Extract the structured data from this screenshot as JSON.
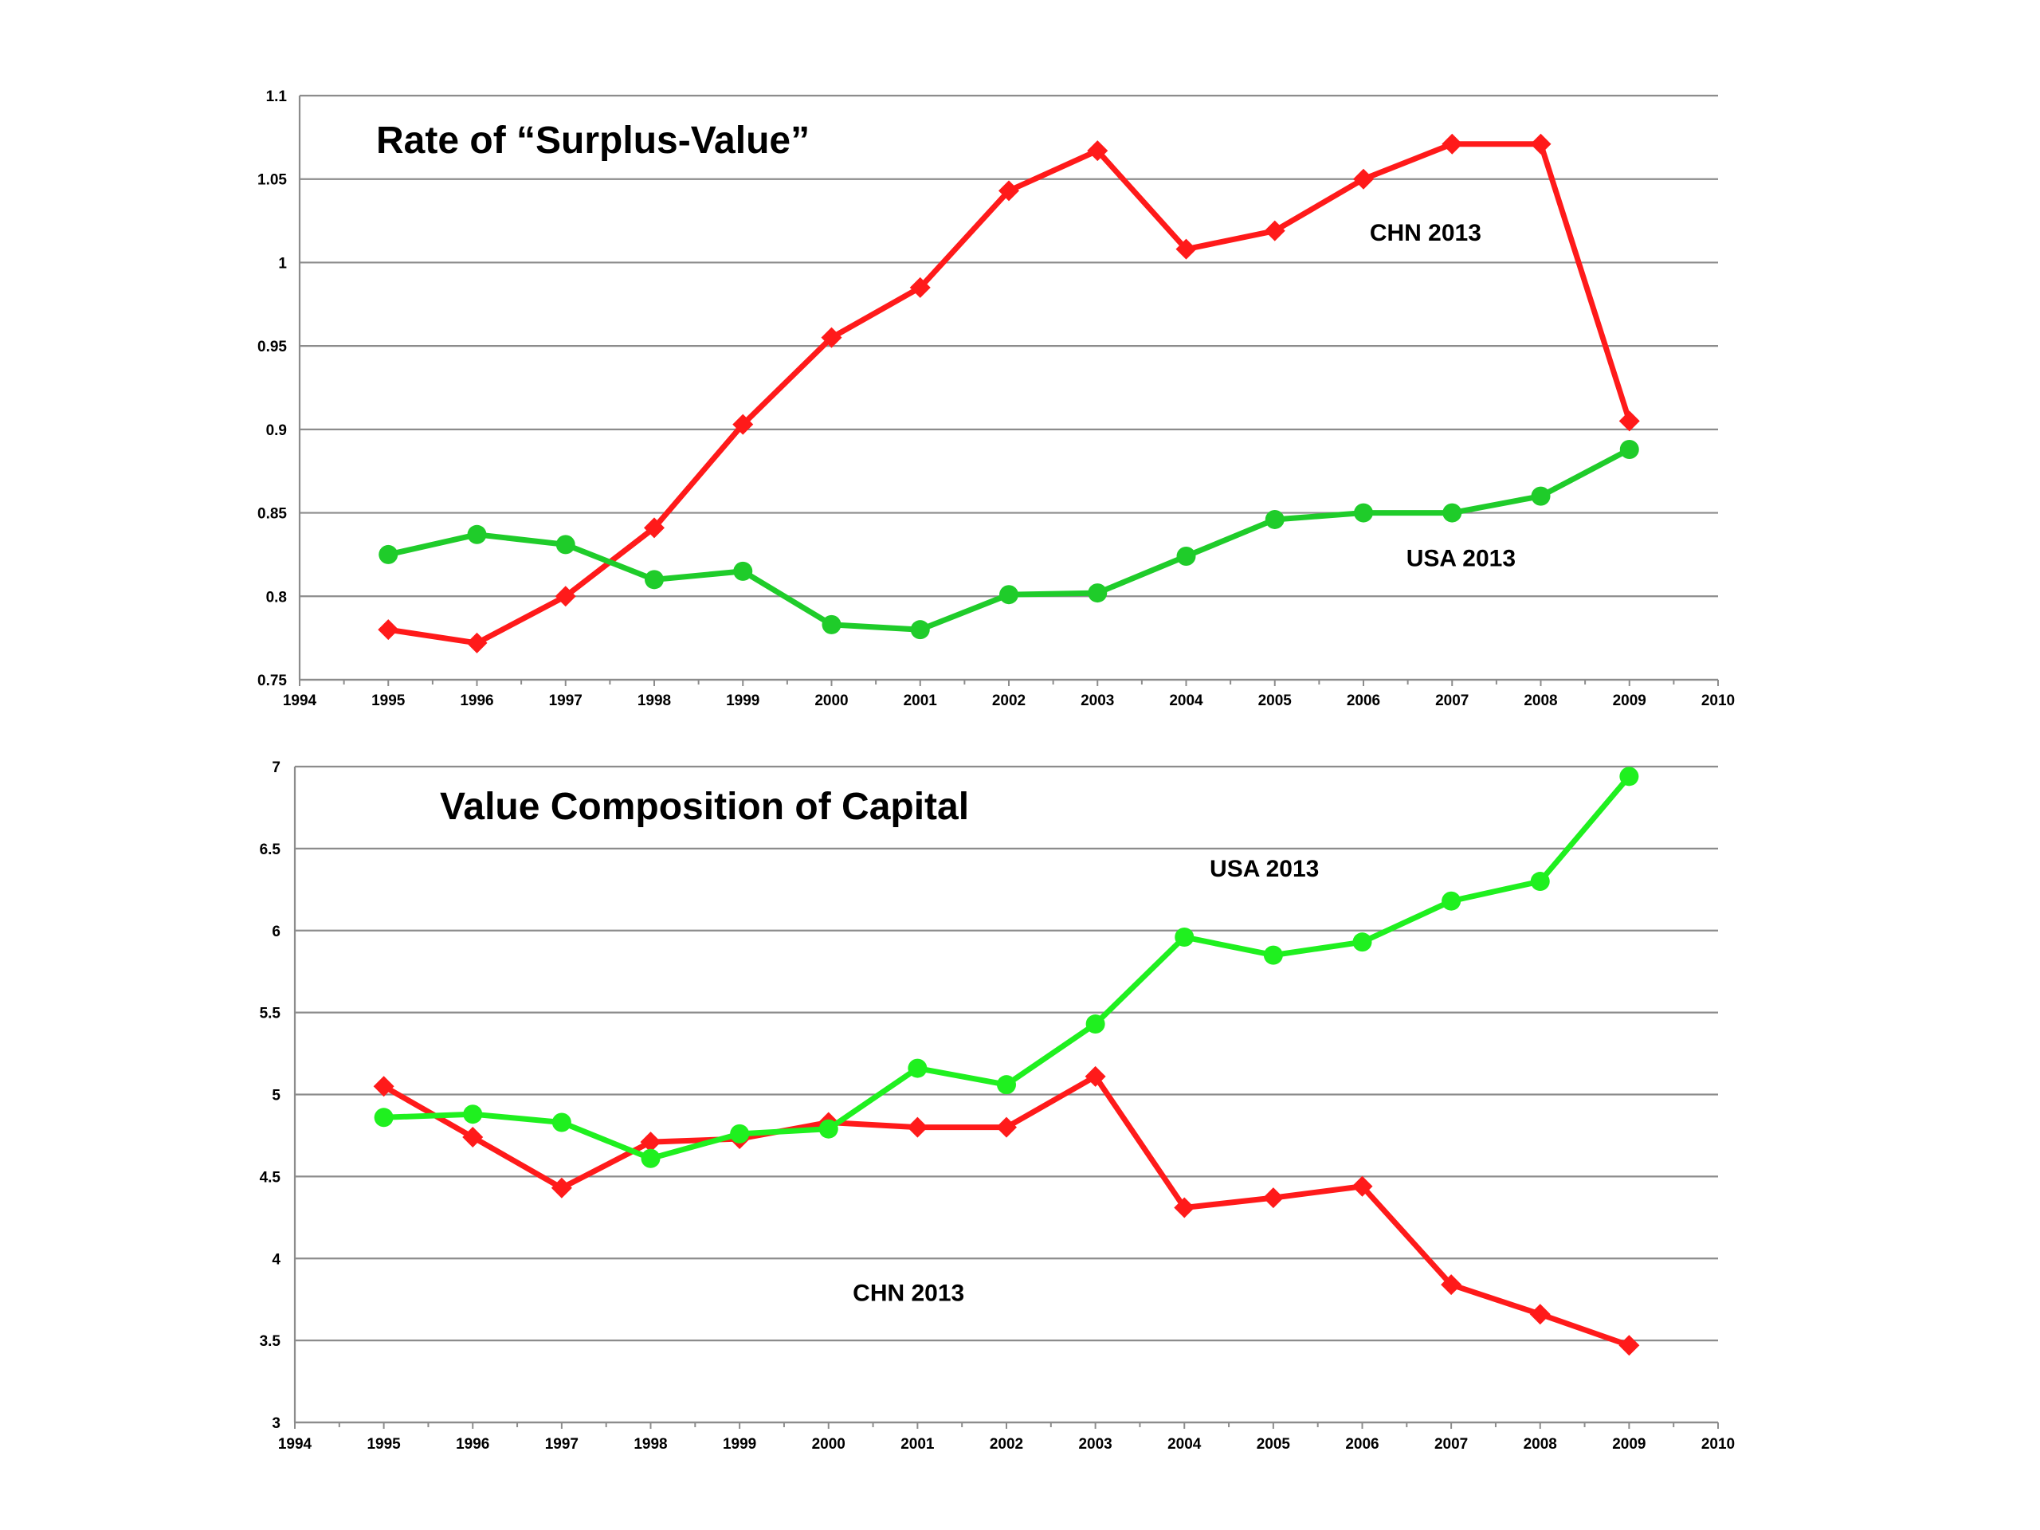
{
  "chart_data": [
    {
      "type": "line",
      "title": "Rate of “Surplus-Value”",
      "xlabel": "",
      "ylabel": "",
      "xlim": [
        1994,
        2010
      ],
      "ylim": [
        0.75,
        1.1
      ],
      "xticks": [
        "1994",
        "1995",
        "1996",
        "1997",
        "1998",
        "1999",
        "2000",
        "2001",
        "2002",
        "2003",
        "2004",
        "2005",
        "2006",
        "2007",
        "2008",
        "2009",
        "2010"
      ],
      "yticks": [
        "0.75",
        "0.8",
        "0.85",
        "0.9",
        "0.95",
        "1",
        "1.05",
        "1.1"
      ],
      "grid": true,
      "x": [
        1995,
        1996,
        1997,
        1998,
        1999,
        2000,
        2001,
        2002,
        2003,
        2004,
        2005,
        2006,
        2007,
        2008,
        2009
      ],
      "series": [
        {
          "name": "CHN 2013",
          "color": "#ff1a1a",
          "marker": "diamond",
          "values": [
            0.78,
            0.772,
            0.8,
            0.841,
            0.903,
            0.955,
            0.985,
            1.043,
            1.067,
            1.008,
            1.019,
            1.05,
            1.071,
            1.071,
            0.905
          ]
        },
        {
          "name": "USA 2013",
          "color": "#1fcc2a",
          "marker": "circle",
          "values": [
            0.825,
            0.837,
            0.831,
            0.81,
            0.815,
            0.783,
            0.78,
            0.801,
            0.802,
            0.824,
            0.846,
            0.85,
            0.85,
            0.86,
            0.888
          ]
        }
      ],
      "annotations": [
        {
          "text": "CHN 2013",
          "x": 2006.7,
          "y": 1.013
        },
        {
          "text": "USA 2013",
          "x": 2007.1,
          "y": 0.818
        }
      ]
    },
    {
      "type": "line",
      "title": "Value Composition of Capital",
      "xlabel": "",
      "ylabel": "",
      "xlim": [
        1994,
        2010
      ],
      "ylim": [
        3,
        7
      ],
      "xticks": [
        "1994",
        "1995",
        "1996",
        "1997",
        "1998",
        "1999",
        "2000",
        "2001",
        "2002",
        "2003",
        "2004",
        "2005",
        "2006",
        "2007",
        "2008",
        "2009",
        "2010"
      ],
      "yticks": [
        "3",
        "3.5",
        "4",
        "4.5",
        "5",
        "5.5",
        "6",
        "6.5",
        "7"
      ],
      "grid": true,
      "x": [
        1995,
        1996,
        1997,
        1998,
        1999,
        2000,
        2001,
        2002,
        2003,
        2004,
        2005,
        2006,
        2007,
        2008,
        2009
      ],
      "series": [
        {
          "name": "CHN 2013",
          "color": "#ff1a1a",
          "marker": "diamond",
          "values": [
            5.05,
            4.74,
            4.43,
            4.71,
            4.73,
            4.83,
            4.8,
            4.8,
            5.11,
            4.31,
            4.37,
            4.44,
            3.84,
            3.66,
            3.47
          ]
        },
        {
          "name": "USA 2013",
          "color": "#1ff01f",
          "marker": "circle",
          "values": [
            4.86,
            4.88,
            4.83,
            4.61,
            4.76,
            4.79,
            5.16,
            5.06,
            5.43,
            5.96,
            5.85,
            5.93,
            6.18,
            6.3,
            6.94
          ]
        }
      ],
      "annotations": [
        {
          "text": "USA 2013",
          "x": 2004.9,
          "y": 6.33
        },
        {
          "text": "CHN 2013",
          "x": 2000.9,
          "y": 3.74
        }
      ]
    }
  ]
}
